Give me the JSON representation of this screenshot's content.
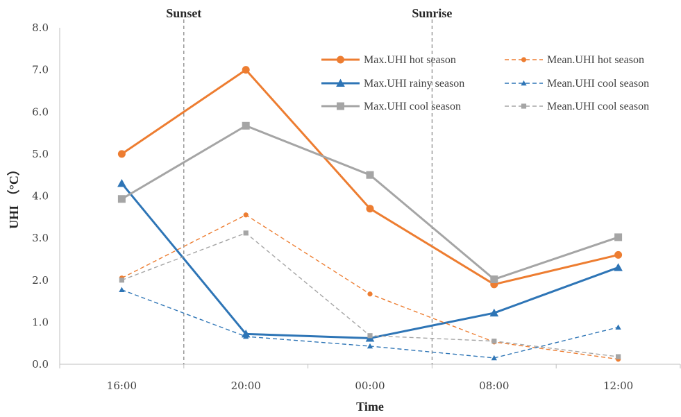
{
  "chart_data": {
    "type": "line",
    "xlabel": "Time",
    "ylabel": "UHI （°C）",
    "categories": [
      "16:00",
      "20:00",
      "00:00",
      "08:00",
      "12:00"
    ],
    "ylim": [
      0,
      8
    ],
    "yticks": [
      "0.0",
      "1.0",
      "2.0",
      "3.0",
      "4.0",
      "5.0",
      "6.0",
      "7.0",
      "8.0"
    ],
    "grid": false,
    "legend_position": "top-right",
    "annotations": [
      {
        "label": "Sunset",
        "x_between": [
          "16:00",
          "20:00"
        ]
      },
      {
        "label": "Sunrise",
        "x_between": [
          "00:00",
          "08:00"
        ]
      }
    ],
    "series": [
      {
        "name": "Max.UHI hot season",
        "style": "solid",
        "marker": "circle",
        "color": "#ED7D31",
        "values": [
          5.0,
          7.0,
          3.7,
          1.9,
          2.6
        ]
      },
      {
        "name": "Max.UHI rainy season",
        "style": "solid",
        "marker": "triangle",
        "color": "#2E75B6",
        "values": [
          4.3,
          0.72,
          0.62,
          1.22,
          2.3
        ]
      },
      {
        "name": "Max.UHI cool season",
        "style": "solid",
        "marker": "square",
        "color": "#A5A5A5",
        "values": [
          3.93,
          5.67,
          4.5,
          2.02,
          3.02
        ]
      },
      {
        "name": "Mean.UHI hot season",
        "style": "dashed",
        "marker": "circle",
        "color": "#ED7D31",
        "values": [
          2.05,
          3.55,
          1.67,
          0.53,
          0.12
        ]
      },
      {
        "name": "Mean.UHI cool season",
        "style": "dashed",
        "marker": "triangle",
        "color": "#2E75B6",
        "values": [
          1.77,
          0.66,
          0.43,
          0.15,
          0.88
        ]
      },
      {
        "name": "Mean.UHI cool season",
        "style": "dashed",
        "marker": "square",
        "color": "#A5A5A5",
        "values": [
          2.0,
          3.12,
          0.68,
          0.55,
          0.18
        ]
      }
    ]
  }
}
